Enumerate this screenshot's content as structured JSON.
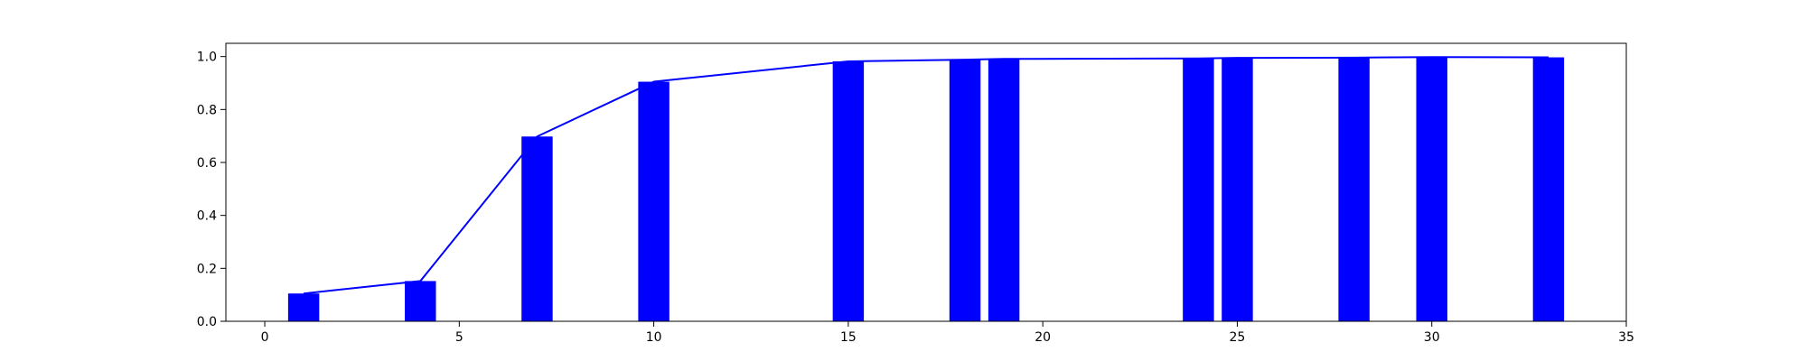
{
  "chart_data": {
    "type": "bar",
    "title": "",
    "xlabel": "",
    "ylabel": "",
    "xlim": [
      -1,
      35
    ],
    "ylim": [
      0,
      1.05
    ],
    "grid": false,
    "bar_width": 0.8,
    "x_ticks": [
      0,
      5,
      10,
      15,
      20,
      25,
      30,
      35
    ],
    "x_tick_labels": [
      "0",
      "5",
      "10",
      "15",
      "20",
      "25",
      "30",
      "35"
    ],
    "y_ticks": [
      0.0,
      0.2,
      0.4,
      0.6,
      0.8,
      1.0
    ],
    "y_tick_labels": [
      "0.0",
      "0.2",
      "0.4",
      "0.6",
      "0.8",
      "1.0"
    ],
    "series": [
      {
        "kind": "bar",
        "color": "#0000ff",
        "x": [
          1,
          4,
          7,
          10,
          15,
          18,
          19,
          24,
          25,
          28,
          30,
          33
        ],
        "values": [
          0.105,
          0.152,
          0.698,
          0.905,
          0.982,
          0.988,
          0.991,
          0.993,
          0.995,
          0.996,
          0.998,
          0.997
        ]
      },
      {
        "kind": "line",
        "color": "#0000ff",
        "x": [
          1,
          4,
          7,
          10,
          15,
          18,
          19,
          24,
          25,
          28,
          30,
          33
        ],
        "values": [
          0.105,
          0.152,
          0.698,
          0.905,
          0.982,
          0.988,
          0.991,
          0.993,
          0.995,
          0.996,
          0.998,
          0.997
        ]
      }
    ]
  }
}
